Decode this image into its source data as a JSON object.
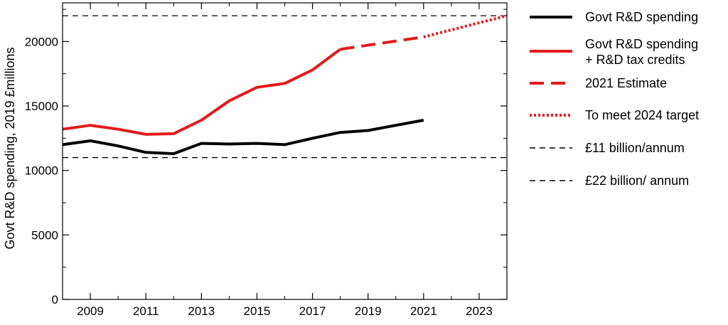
{
  "chart_data": {
    "type": "line",
    "title": "",
    "xlabel": "",
    "ylabel": "Govt R&D spending, 2019 £millions",
    "xlim": [
      2008,
      2024
    ],
    "ylim": [
      0,
      23000
    ],
    "x_ticks": [
      2009,
      2011,
      2013,
      2015,
      2017,
      2019,
      2021,
      2023
    ],
    "x_tick_labels": [
      "2009",
      "2011",
      "2013",
      "2015",
      "2017",
      "2019",
      "2021",
      "2023"
    ],
    "y_ticks": [
      0,
      5000,
      10000,
      15000,
      20000
    ],
    "y_tick_labels": [
      "0",
      "5000",
      "10000",
      "15000",
      "20000"
    ],
    "grid": false,
    "legend_position": "right",
    "series": [
      {
        "name": "Govt R&D spending",
        "color": "#000000",
        "style": "solid",
        "x": [
          2008,
          2009,
          2010,
          2011,
          2012,
          2013,
          2014,
          2015,
          2016,
          2017,
          2018,
          2019,
          2020,
          2021
        ],
        "y": [
          12000,
          12300,
          11900,
          11400,
          11300,
          12100,
          12050,
          12100,
          12000,
          12500,
          12950,
          13100,
          13500,
          13900
        ]
      },
      {
        "name": "Govt R&D spending + R&D tax credits",
        "name_lines": [
          "Govt R&D spending",
          "+ R&D tax credits"
        ],
        "color": "#e31a1c",
        "style": "solid",
        "x": [
          2008,
          2009,
          2010,
          2011,
          2012,
          2013,
          2014,
          2015,
          2016,
          2017,
          2018
        ],
        "y": [
          13200,
          13500,
          13200,
          12800,
          12850,
          13900,
          15400,
          16450,
          16750,
          17800,
          19400
        ]
      },
      {
        "name": "2021 Estimate",
        "color": "#e31a1c",
        "style": "dashed",
        "x": [
          2018,
          2021
        ],
        "y": [
          19400,
          20350
        ]
      },
      {
        "name": "To meet 2024 target",
        "color": "#e31a1c",
        "style": "dotted",
        "x": [
          2021,
          2024
        ],
        "y": [
          20350,
          22000
        ]
      }
    ],
    "reference_lines": [
      {
        "name": "£11 billion/annum",
        "y": 11000,
        "color": "#000000",
        "style": "dashed"
      },
      {
        "name": "£22 billion/ annum",
        "y": 22000,
        "color": "#000000",
        "style": "dashed"
      }
    ]
  }
}
